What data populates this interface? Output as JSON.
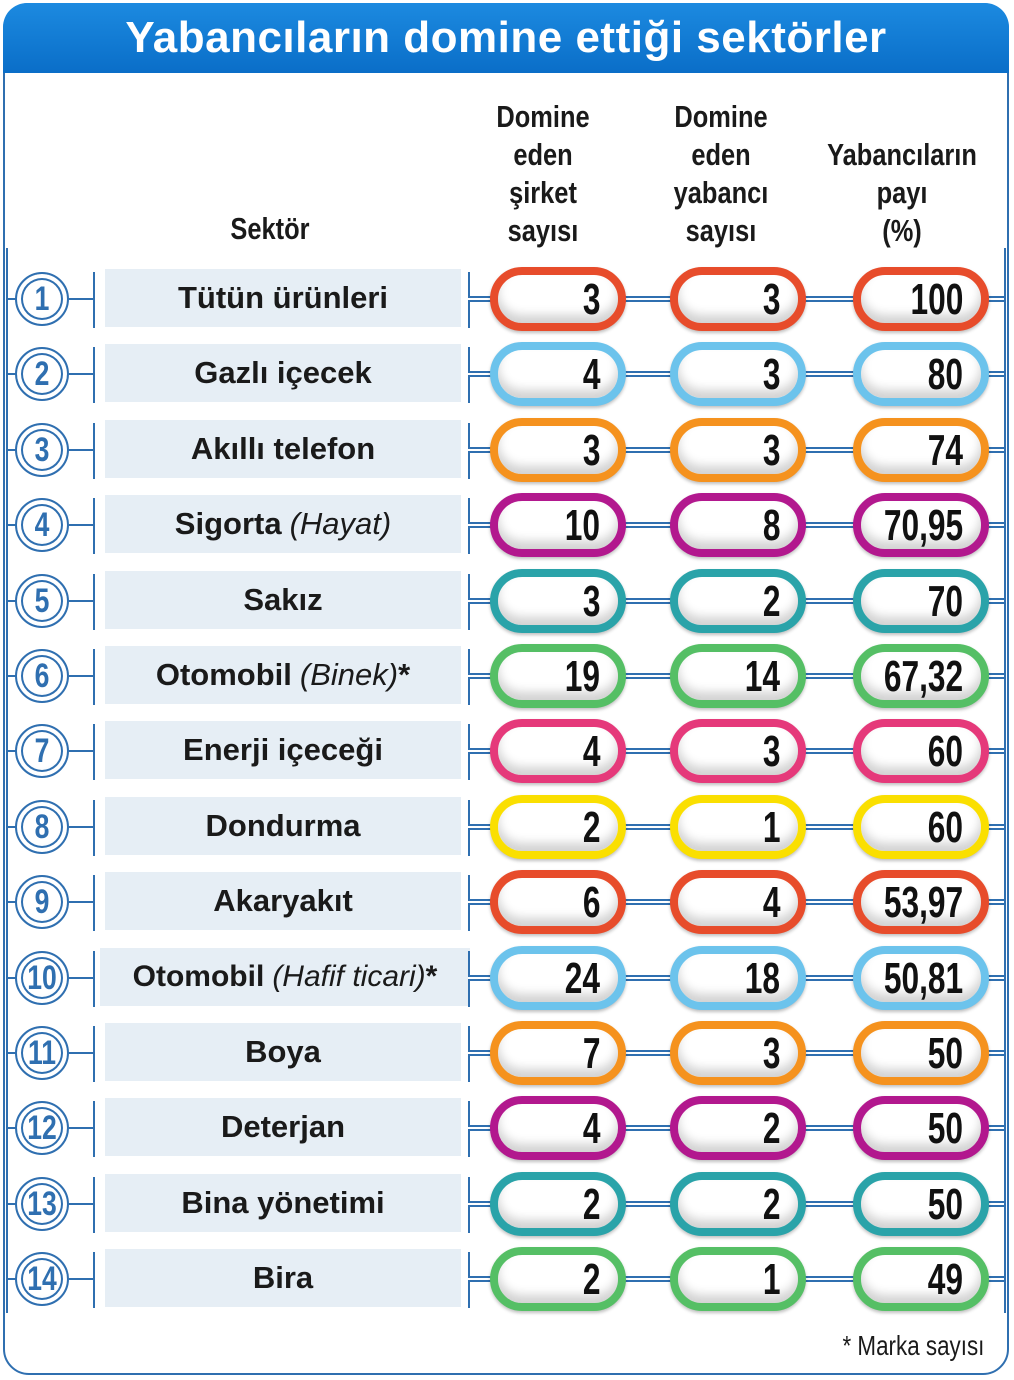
{
  "title": "Yabancıların domine ettiği sektörler",
  "headers": {
    "sector": "Sektör",
    "col1": [
      "Domine",
      "eden",
      "şirket",
      "sayısı"
    ],
    "col2": [
      "Domine",
      "eden",
      "yabancı",
      "sayısı"
    ],
    "col3": [
      "Yabancıların",
      "payı",
      "(%)"
    ]
  },
  "footnote": "* Marka sayısı",
  "colors": {
    "frame": "#2f6fb0",
    "title_bg": "#0a6ec8",
    "row_bg": "#e6eef5",
    "pill_cycle": [
      "#e74c2b",
      "#6cc3ec",
      "#f5921e",
      "#b2188e",
      "#2aa3a9",
      "#55bf65",
      "#e5397a",
      "#fadf00"
    ]
  },
  "chart_data": {
    "type": "table",
    "title": "Yabancıların domine ettiği sektörler",
    "columns": [
      "Sektör",
      "Domine eden şirket sayısı",
      "Domine eden yabancı sayısı",
      "Yabancıların payı (%)"
    ],
    "rows": [
      {
        "rank": "1",
        "sector": "Tütün ürünleri",
        "note": "",
        "star": "",
        "companies": "3",
        "foreign": "3",
        "share": "100",
        "color": "#e74c2b"
      },
      {
        "rank": "2",
        "sector": "Gazlı içecek",
        "note": "",
        "star": "",
        "companies": "4",
        "foreign": "3",
        "share": "80",
        "color": "#6cc3ec"
      },
      {
        "rank": "3",
        "sector": "Akıllı telefon",
        "note": "",
        "star": "",
        "companies": "3",
        "foreign": "3",
        "share": "74",
        "color": "#f5921e"
      },
      {
        "rank": "4",
        "sector": "Sigorta",
        "note": "(Hayat)",
        "star": "",
        "companies": "10",
        "foreign": "8",
        "share": "70,95",
        "color": "#b2188e"
      },
      {
        "rank": "5",
        "sector": "Sakız",
        "note": "",
        "star": "",
        "companies": "3",
        "foreign": "2",
        "share": "70",
        "color": "#2aa3a9"
      },
      {
        "rank": "6",
        "sector": "Otomobil",
        "note": "(Binek)",
        "star": "*",
        "companies": "19",
        "foreign": "14",
        "share": "67,32",
        "color": "#55bf65"
      },
      {
        "rank": "7",
        "sector": "Enerji içeceği",
        "note": "",
        "star": "",
        "companies": "4",
        "foreign": "3",
        "share": "60",
        "color": "#e5397a"
      },
      {
        "rank": "8",
        "sector": "Dondurma",
        "note": "",
        "star": "",
        "companies": "2",
        "foreign": "1",
        "share": "60",
        "color": "#fadf00"
      },
      {
        "rank": "9",
        "sector": "Akaryakıt",
        "note": "",
        "star": "",
        "companies": "6",
        "foreign": "4",
        "share": "53,97",
        "color": "#e74c2b"
      },
      {
        "rank": "10",
        "sector": "Otomobil",
        "note": "(Hafif ticari)",
        "star": "*",
        "companies": "24",
        "foreign": "18",
        "share": "50,81",
        "color": "#6cc3ec"
      },
      {
        "rank": "11",
        "sector": "Boya",
        "note": "",
        "star": "",
        "companies": "7",
        "foreign": "3",
        "share": "50",
        "color": "#f5921e"
      },
      {
        "rank": "12",
        "sector": "Deterjan",
        "note": "",
        "star": "",
        "companies": "4",
        "foreign": "2",
        "share": "50",
        "color": "#b2188e"
      },
      {
        "rank": "13",
        "sector": "Bina yönetimi",
        "note": "",
        "star": "",
        "companies": "2",
        "foreign": "2",
        "share": "50",
        "color": "#2aa3a9"
      },
      {
        "rank": "14",
        "sector": "Bira",
        "note": "",
        "star": "",
        "companies": "2",
        "foreign": "1",
        "share": "49",
        "color": "#55bf65"
      }
    ]
  }
}
